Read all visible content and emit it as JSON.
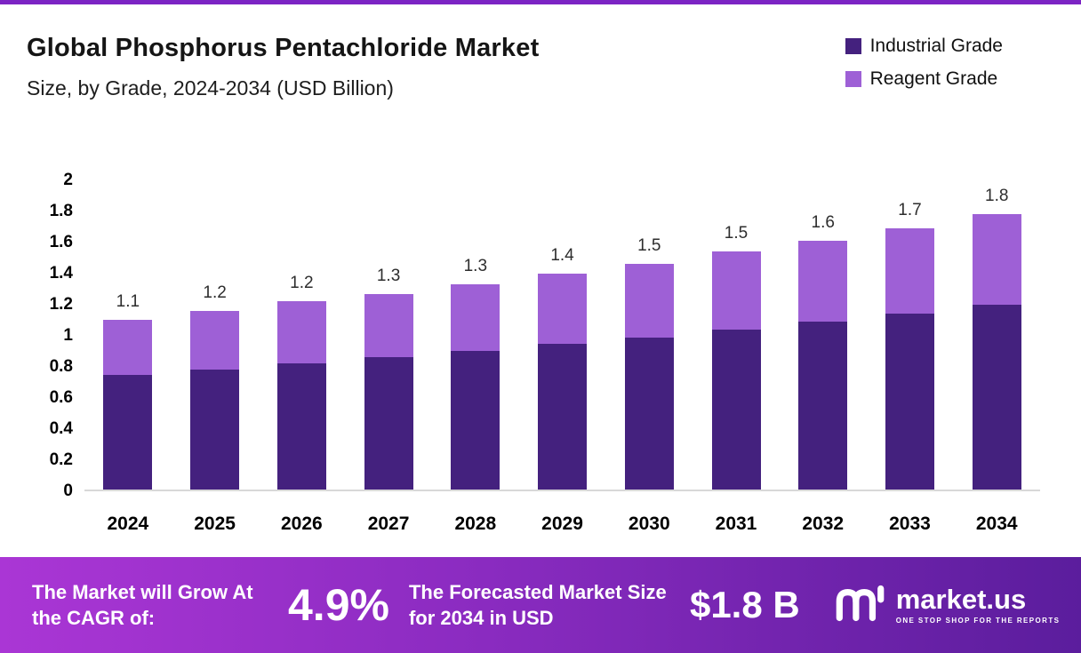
{
  "page": {
    "top_bar_color": "#7c24c4"
  },
  "header": {
    "title": "Global Phosphorus Pentachloride Market",
    "subtitle": "Size, by Grade, 2024-2034 (USD Billion)"
  },
  "legend": [
    {
      "label": "Industrial Grade",
      "color": "#44217e"
    },
    {
      "label": "Reagent Grade",
      "color": "#9e60d6"
    }
  ],
  "chart_data": {
    "type": "bar",
    "stacked": true,
    "title": "Global Phosphorus Pentachloride Market",
    "subtitle": "Size, by Grade, 2024-2034 (USD Billion)",
    "unit": "USD Billion",
    "categories": [
      "2024",
      "2025",
      "2026",
      "2027",
      "2028",
      "2029",
      "2030",
      "2031",
      "2032",
      "2033",
      "2034"
    ],
    "series": [
      {
        "name": "Industrial Grade",
        "color": "#44217e",
        "values": [
          0.74,
          0.77,
          0.81,
          0.85,
          0.89,
          0.94,
          0.98,
          1.03,
          1.08,
          1.13,
          1.19
        ]
      },
      {
        "name": "Reagent Grade",
        "color": "#9e60d6",
        "values": [
          0.35,
          0.38,
          0.4,
          0.41,
          0.43,
          0.45,
          0.47,
          0.5,
          0.52,
          0.55,
          0.58
        ]
      }
    ],
    "total_labels": [
      "1.1",
      "1.2",
      "1.2",
      "1.3",
      "1.3",
      "1.4",
      "1.5",
      "1.5",
      "1.6",
      "1.7",
      "1.8"
    ],
    "ylim": [
      0,
      2
    ],
    "yticks": [
      0,
      0.2,
      0.4,
      0.6,
      0.8,
      1,
      1.2,
      1.4,
      1.6,
      1.8,
      2
    ],
    "grid": false,
    "legend_position": "top-right"
  },
  "footer": {
    "growth_text": "The Market will Grow At the CAGR of:",
    "cagr_value": "4.9%",
    "forecast_text": "The Forecasted Market Size for 2034 in USD",
    "forecast_value": "$1.8 B",
    "brand_name": "market.us",
    "brand_tagline": "ONE STOP SHOP FOR THE REPORTS",
    "gradient": [
      "#aa36d5",
      "#5b1d9d"
    ]
  }
}
